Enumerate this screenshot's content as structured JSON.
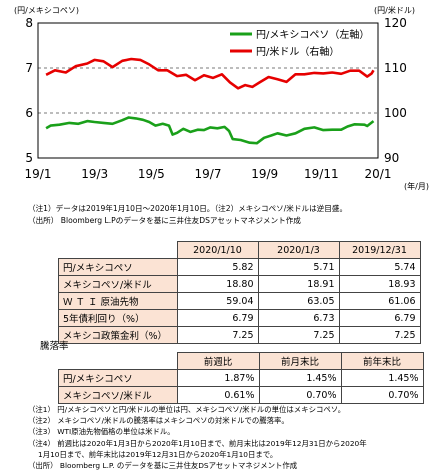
{
  "chart_data": {
    "type": "line",
    "left_axis_label": "(円/メキシコペソ)",
    "right_axis_label": "(円/米ドル)",
    "x_unit_label": "(年/月)",
    "x_ticks": [
      "19/1",
      "19/3",
      "19/5",
      "19/7",
      "19/9",
      "19/11",
      "20/1"
    ],
    "left_ticks": [
      "5",
      "6",
      "7",
      "8"
    ],
    "right_ticks": [
      "90",
      "100",
      "110",
      "120"
    ],
    "left_ylim": [
      5,
      8
    ],
    "right_ylim": [
      90,
      120
    ],
    "x_range": [
      "2019-01-01",
      "2020-01-15"
    ],
    "grid": "horizontal dashed at 6 and 7 (left axis)",
    "legend_position": "top-right",
    "colors": {
      "mxn": "#1aa01a",
      "usd": "#e60000",
      "grid": "#7a7a7a"
    },
    "series": [
      {
        "name": "円/メキシコペソ（左軸）",
        "axis": "left",
        "points": [
          [
            "2019-01-10",
            5.66
          ],
          [
            "2019-01-15",
            5.72
          ],
          [
            "2019-01-25",
            5.74
          ],
          [
            "2019-02-05",
            5.78
          ],
          [
            "2019-02-15",
            5.76
          ],
          [
            "2019-02-25",
            5.82
          ],
          [
            "2019-03-05",
            5.8
          ],
          [
            "2019-03-15",
            5.78
          ],
          [
            "2019-03-25",
            5.76
          ],
          [
            "2019-04-05",
            5.84
          ],
          [
            "2019-04-12",
            5.9
          ],
          [
            "2019-04-20",
            5.88
          ],
          [
            "2019-04-28",
            5.85
          ],
          [
            "2019-05-05",
            5.8
          ],
          [
            "2019-05-12",
            5.72
          ],
          [
            "2019-05-20",
            5.76
          ],
          [
            "2019-05-27",
            5.72
          ],
          [
            "2019-05-31",
            5.52
          ],
          [
            "2019-06-05",
            5.56
          ],
          [
            "2019-06-12",
            5.65
          ],
          [
            "2019-06-20",
            5.58
          ],
          [
            "2019-06-28",
            5.63
          ],
          [
            "2019-07-05",
            5.62
          ],
          [
            "2019-07-12",
            5.68
          ],
          [
            "2019-07-20",
            5.66
          ],
          [
            "2019-07-28",
            5.69
          ],
          [
            "2019-08-02",
            5.6
          ],
          [
            "2019-08-06",
            5.42
          ],
          [
            "2019-08-15",
            5.4
          ],
          [
            "2019-08-25",
            5.34
          ],
          [
            "2019-09-02",
            5.33
          ],
          [
            "2019-09-10",
            5.45
          ],
          [
            "2019-09-18",
            5.5
          ],
          [
            "2019-09-25",
            5.55
          ],
          [
            "2019-10-05",
            5.5
          ],
          [
            "2019-10-15",
            5.55
          ],
          [
            "2019-10-25",
            5.65
          ],
          [
            "2019-11-05",
            5.68
          ],
          [
            "2019-11-15",
            5.62
          ],
          [
            "2019-11-25",
            5.63
          ],
          [
            "2019-12-05",
            5.63
          ],
          [
            "2019-12-12",
            5.7
          ],
          [
            "2019-12-20",
            5.75
          ],
          [
            "2019-12-31",
            5.74
          ],
          [
            "2020-01-03",
            5.71
          ],
          [
            "2020-01-10",
            5.82
          ]
        ]
      },
      {
        "name": "円/米ドル（右軸）",
        "axis": "right",
        "points": [
          [
            "2019-01-10",
            108.5
          ],
          [
            "2019-01-20",
            109.5
          ],
          [
            "2019-02-01",
            109.0
          ],
          [
            "2019-02-12",
            110.4
          ],
          [
            "2019-02-25",
            111.0
          ],
          [
            "2019-03-05",
            111.8
          ],
          [
            "2019-03-15",
            111.5
          ],
          [
            "2019-03-25",
            110.2
          ],
          [
            "2019-04-05",
            111.6
          ],
          [
            "2019-04-15",
            112.0
          ],
          [
            "2019-04-25",
            111.8
          ],
          [
            "2019-05-05",
            110.8
          ],
          [
            "2019-05-15",
            109.5
          ],
          [
            "2019-05-25",
            109.5
          ],
          [
            "2019-06-05",
            108.2
          ],
          [
            "2019-06-15",
            108.5
          ],
          [
            "2019-06-25",
            107.3
          ],
          [
            "2019-07-05",
            108.4
          ],
          [
            "2019-07-15",
            107.8
          ],
          [
            "2019-07-25",
            108.6
          ],
          [
            "2019-08-03",
            106.8
          ],
          [
            "2019-08-12",
            105.5
          ],
          [
            "2019-08-20",
            106.2
          ],
          [
            "2019-08-28",
            105.8
          ],
          [
            "2019-09-05",
            106.8
          ],
          [
            "2019-09-15",
            108.0
          ],
          [
            "2019-09-25",
            107.5
          ],
          [
            "2019-10-05",
            106.9
          ],
          [
            "2019-10-15",
            108.6
          ],
          [
            "2019-10-25",
            108.6
          ],
          [
            "2019-11-05",
            108.9
          ],
          [
            "2019-11-15",
            108.8
          ],
          [
            "2019-11-25",
            109.0
          ],
          [
            "2019-12-05",
            108.7
          ],
          [
            "2019-12-15",
            109.4
          ],
          [
            "2019-12-25",
            109.4
          ],
          [
            "2020-01-03",
            108.1
          ],
          [
            "2020-01-08",
            108.8
          ],
          [
            "2020-01-10",
            109.5
          ]
        ]
      }
    ]
  },
  "notes_top": [
    "（注1）データは2019年1月10日～2020年1月10日。（注2）メキシコペソ/米ドルは逆目盛。",
    "（出所） Bloomberg L.Pのデータを基に三井住友DSアセットマネジメント作成"
  ],
  "table1": {
    "headers": [
      "2020/1/10",
      "2020/1/3",
      "2019/12/31"
    ],
    "rows": [
      {
        "label": "円/メキシコペソ",
        "values": [
          "5.82",
          "5.71",
          "5.74"
        ]
      },
      {
        "label": "メキシコペソ/米ドル",
        "values": [
          "18.80",
          "18.91",
          "18.93"
        ]
      },
      {
        "label": "Ｗ Ｔ Ｉ 原油先物",
        "values": [
          "59.04",
          "63.05",
          "61.06"
        ]
      },
      {
        "label": "5年債利回り（%）",
        "values": [
          "6.79",
          "6.73",
          "6.79"
        ]
      },
      {
        "label": "メキシコ政策金利（%）",
        "values": [
          "7.25",
          "7.25",
          "7.25"
        ]
      }
    ]
  },
  "section_label": "騰落率",
  "table2": {
    "headers": [
      "前週比",
      "前月末比",
      "前年末比"
    ],
    "rows": [
      {
        "label": "円/メキシコペソ",
        "values": [
          "1.87%",
          "1.45%",
          "1.45%"
        ]
      },
      {
        "label": "メキシコペソ/米ドル",
        "values": [
          "0.61%",
          "0.70%",
          "0.70%"
        ]
      }
    ]
  },
  "notes_bottom": [
    "（注1） 円/メキシコペソと円/米ドルの単位は円、メキシコペソ/米ドルの単位はメキシコペソ。",
    "（注2） メキシコペソ/米ドルの騰落率はメキシコペソの対米ドルでの騰落率。",
    "（注3） WTI原油先物価格の単位は米ドル。",
    "（注4） 前週比は2020年1月3日から2020年1月10日まで、前月末比は2019年12月31日から2020年",
    "1月10日まで、前年末比は2019年12月31日から2020年1月10日まで。",
    "（出所） Bloomberg L.P. のデータを基に三井住友DSアセットマネジメント作成"
  ]
}
